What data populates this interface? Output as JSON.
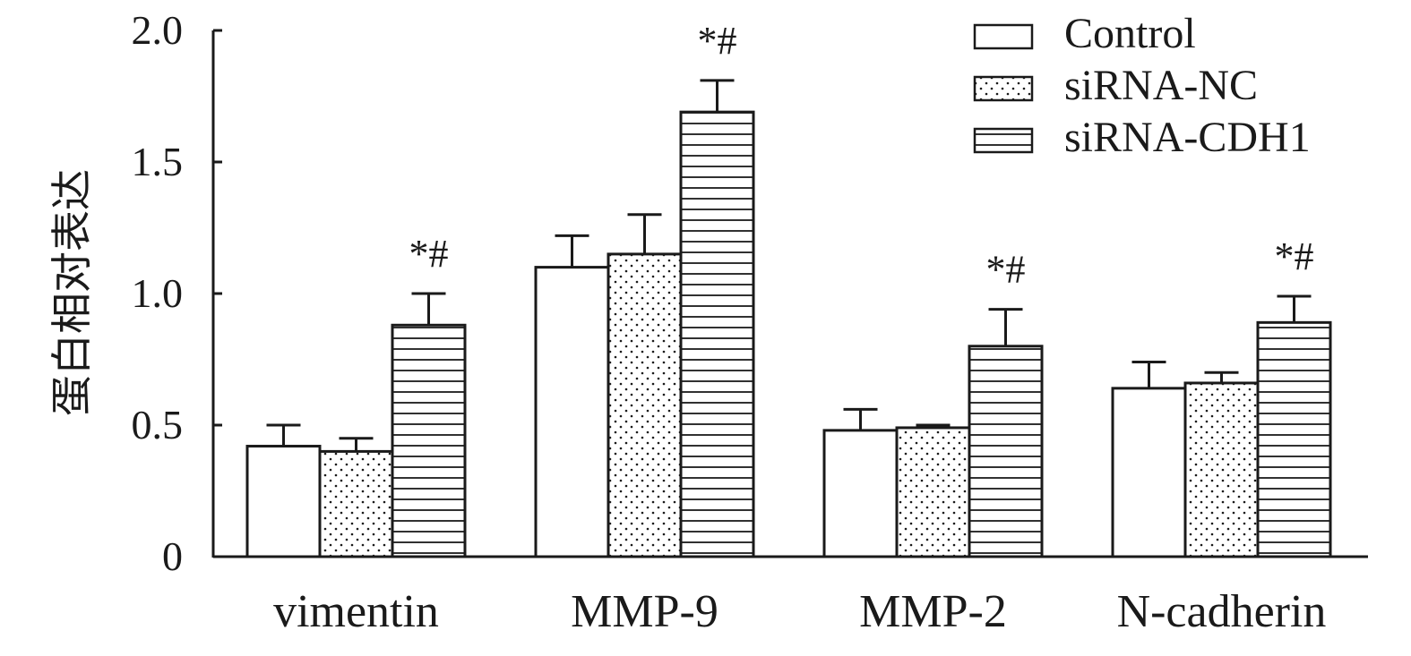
{
  "chart_data": {
    "type": "bar",
    "categories": [
      "vimentin",
      "MMP-9",
      "MMP-2",
      "N-cadherin"
    ],
    "ylabel": "蛋白相对表达",
    "xlabel": "",
    "ylim": [
      0,
      2.0
    ],
    "yticks": [
      {
        "value": 0,
        "label": "0"
      },
      {
        "value": 0.5,
        "label": "0.5"
      },
      {
        "value": 1.0,
        "label": "1.0"
      },
      {
        "value": 1.5,
        "label": "1.5"
      },
      {
        "value": 2.0,
        "label": "2.0"
      }
    ],
    "legend_position": "top-right",
    "series": [
      {
        "name": "Control",
        "pattern": "none",
        "values": [
          0.42,
          1.1,
          0.48,
          0.64
        ],
        "errors": [
          0.08,
          0.12,
          0.08,
          0.1
        ]
      },
      {
        "name": "siRNA-NC",
        "pattern": "dots",
        "values": [
          0.4,
          1.15,
          0.49,
          0.66
        ],
        "errors": [
          0.05,
          0.15,
          0.01,
          0.04
        ]
      },
      {
        "name": "siRNA-CDH1",
        "pattern": "horizontal-lines",
        "values": [
          0.88,
          1.69,
          0.8,
          0.89
        ],
        "errors": [
          0.12,
          0.12,
          0.14,
          0.1
        ]
      }
    ],
    "annotations": [
      {
        "category": "vimentin",
        "series": "siRNA-CDH1",
        "text": "*#"
      },
      {
        "category": "MMP-9",
        "series": "siRNA-CDH1",
        "text": "*#"
      },
      {
        "category": "MMP-2",
        "series": "siRNA-CDH1",
        "text": "*#"
      },
      {
        "category": "N-cadherin",
        "series": "siRNA-CDH1",
        "text": "*#"
      }
    ],
    "colors": {
      "stroke": "#1a1a1a",
      "fill": "#ffffff"
    }
  }
}
